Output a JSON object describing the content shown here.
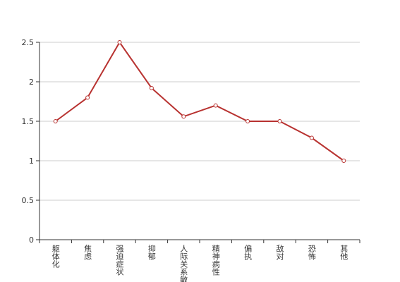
{
  "chart_data": {
    "type": "line",
    "categories": [
      "躯体化",
      "焦虑",
      "强迫症状",
      "抑郁",
      "人际关系敏感",
      "精神病性",
      "偏执",
      "敌对",
      "恐怖",
      "其他"
    ],
    "values": [
      1.5,
      1.8,
      2.5,
      1.92,
      1.56,
      1.7,
      1.5,
      1.5,
      1.29,
      1.0
    ],
    "color": "#b83230",
    "ylim": [
      0,
      2.5
    ],
    "yticks": [
      0,
      0.5,
      1,
      1.5,
      2,
      2.5
    ],
    "grid": true
  }
}
